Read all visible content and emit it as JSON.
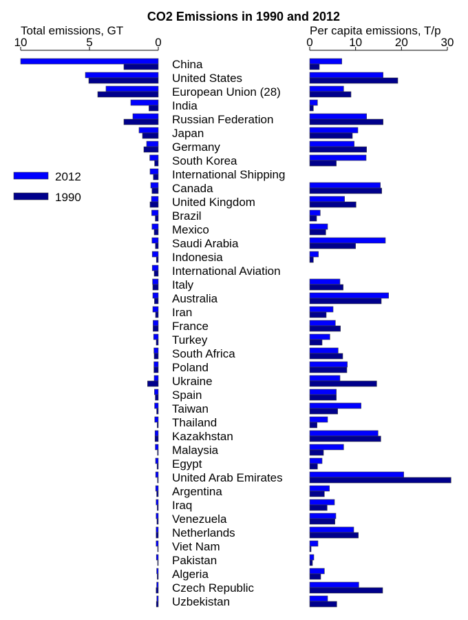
{
  "chart_data": {
    "type": "bar",
    "title": "CO2 Emissions in 1990 and 2012",
    "left_panel": {
      "axis_label": "Total emissions, GT",
      "ticks": [
        10,
        5,
        0
      ],
      "xlim": [
        0,
        10
      ]
    },
    "right_panel": {
      "axis_label": "Per capita emissions, T/p",
      "ticks": [
        0,
        10,
        20,
        30
      ],
      "xlim": [
        0,
        30
      ]
    },
    "legend": {
      "placement": "left",
      "items": [
        {
          "label": "2012",
          "color": "#0000ff"
        },
        {
          "label": "1990",
          "color": "#00008b"
        }
      ]
    },
    "series_colors": {
      "2012": "#0000ff",
      "1990": "#00008b"
    },
    "categories": [
      "China",
      "United States",
      "European Union (28)",
      "India",
      "Russian Federation",
      "Japan",
      "Germany",
      "South Korea",
      "International Shipping",
      "Canada",
      "United Kingdom",
      "Brazil",
      "Mexico",
      "Saudi Arabia",
      "Indonesia",
      "International Aviation",
      "Italy",
      "Australia",
      "Iran",
      "France",
      "Turkey",
      "South Africa",
      "Poland",
      "Ukraine",
      "Spain",
      "Taiwan",
      "Thailand",
      "Kazakhstan",
      "Malaysia",
      "Egypt",
      "United Arab Emirates",
      "Argentina",
      "Iraq",
      "Venezuela",
      "Netherlands",
      "Viet Nam",
      "Pakistan",
      "Algeria",
      "Czech Republic",
      "Uzbekistan"
    ],
    "total_2012": [
      10.0,
      5.3,
      3.8,
      2.0,
      1.85,
      1.4,
      0.85,
      0.62,
      0.6,
      0.55,
      0.5,
      0.48,
      0.46,
      0.46,
      0.44,
      0.44,
      0.42,
      0.4,
      0.4,
      0.38,
      0.34,
      0.32,
      0.32,
      0.3,
      0.28,
      0.27,
      0.26,
      0.24,
      0.22,
      0.2,
      0.19,
      0.19,
      0.16,
      0.16,
      0.16,
      0.16,
      0.14,
      0.12,
      0.12,
      0.11
    ],
    "total_1990": [
      2.5,
      5.05,
      4.4,
      0.68,
      2.5,
      1.15,
      1.05,
      0.27,
      0.36,
      0.46,
      0.6,
      0.22,
      0.3,
      0.21,
      0.14,
      0.3,
      0.4,
      0.28,
      0.2,
      0.38,
      0.15,
      0.3,
      0.32,
      0.78,
      0.22,
      0.12,
      0.08,
      0.24,
      0.06,
      0.09,
      0.06,
      0.12,
      0.08,
      0.1,
      0.16,
      0.02,
      0.05,
      0.08,
      0.16,
      0.14
    ],
    "percapita_2012": [
      7.0,
      16.0,
      7.4,
      1.7,
      12.4,
      10.5,
      9.7,
      12.3,
      null,
      15.4,
      7.6,
      2.3,
      3.9,
      16.5,
      1.9,
      null,
      6.6,
      17.2,
      5.1,
      5.6,
      4.4,
      6.2,
      8.2,
      6.6,
      5.8,
      11.2,
      3.9,
      14.9,
      7.4,
      2.7,
      20.5,
      4.3,
      5.4,
      5.7,
      9.6,
      1.8,
      0.9,
      3.2,
      10.7,
      3.9
    ],
    "percapita_1990": [
      2.1,
      19.2,
      9.0,
      0.8,
      16.0,
      9.3,
      12.4,
      5.8,
      null,
      15.7,
      10.1,
      1.5,
      3.5,
      10.0,
      0.8,
      null,
      7.3,
      15.6,
      3.6,
      6.7,
      2.7,
      7.2,
      8.1,
      14.6,
      5.8,
      6.1,
      1.6,
      15.5,
      3.0,
      1.7,
      30.8,
      3.2,
      3.8,
      5.5,
      10.6,
      0.3,
      0.6,
      2.4,
      15.9,
      5.9
    ]
  }
}
